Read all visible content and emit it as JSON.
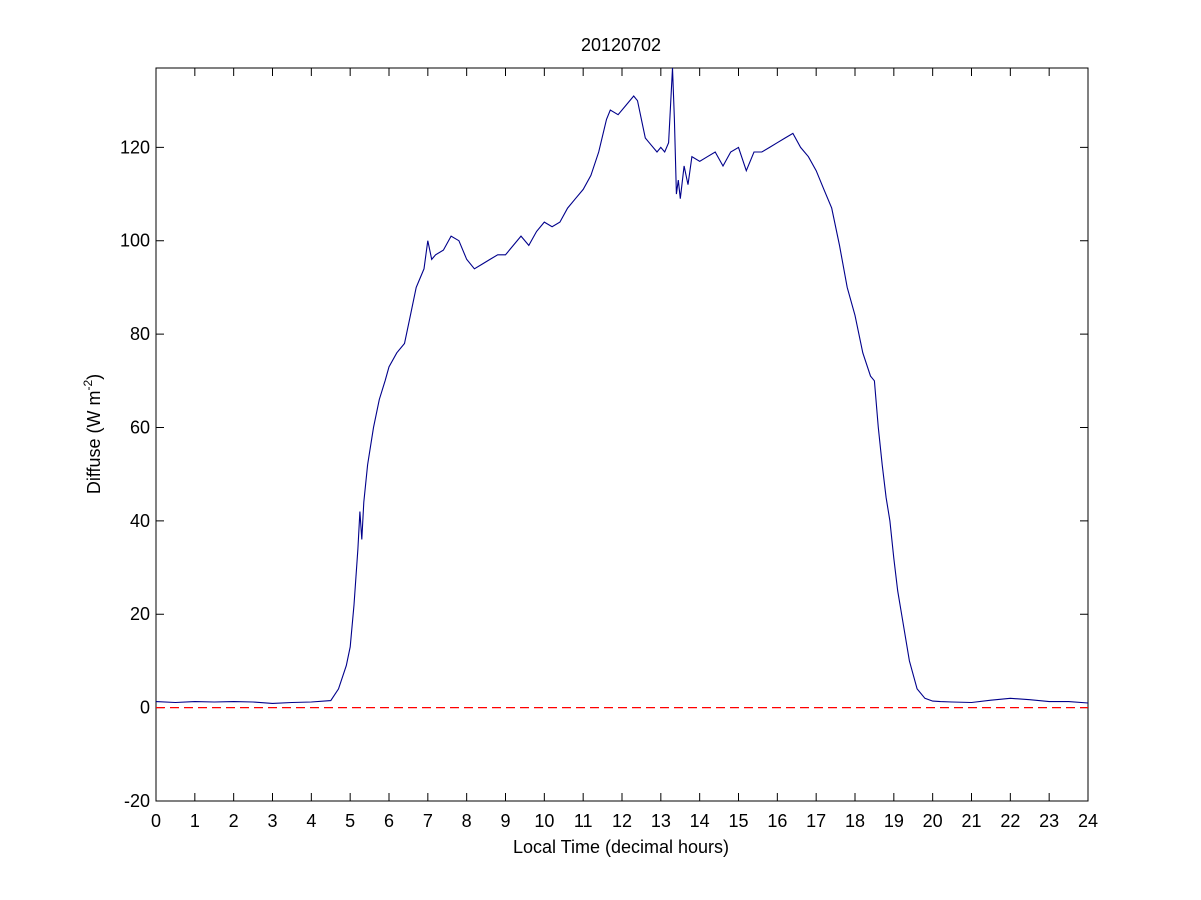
{
  "chart_data": {
    "type": "line",
    "title": "20120702",
    "xlabel": "Local Time (decimal hours)",
    "ylabel_main": "Diffuse (W m",
    "ylabel_sup": "-2",
    "ylabel_close": ")",
    "xlim": [
      0,
      24
    ],
    "ylim": [
      -20,
      137
    ],
    "xticks": [
      0,
      1,
      2,
      3,
      4,
      5,
      6,
      7,
      8,
      9,
      10,
      11,
      12,
      13,
      14,
      15,
      16,
      17,
      18,
      19,
      20,
      21,
      22,
      23,
      24
    ],
    "yticks": [
      -20,
      0,
      20,
      40,
      60,
      80,
      100,
      120
    ],
    "grid": false,
    "reference_line": {
      "y": 0,
      "color": "#ff0000",
      "style": "dashed"
    },
    "series": [
      {
        "color": "#00008b",
        "x": [
          0,
          0.5,
          1,
          1.5,
          2,
          2.5,
          3,
          3.5,
          4,
          4.5,
          4.7,
          4.9,
          5.0,
          5.1,
          5.2,
          5.25,
          5.3,
          5.35,
          5.45,
          5.6,
          5.75,
          5.9,
          6.0,
          6.2,
          6.4,
          6.55,
          6.7,
          6.8,
          6.9,
          7.0,
          7.1,
          7.2,
          7.4,
          7.6,
          7.8,
          8.0,
          8.2,
          8.4,
          8.6,
          8.8,
          9.0,
          9.2,
          9.4,
          9.6,
          9.8,
          10.0,
          10.2,
          10.4,
          10.6,
          10.8,
          11.0,
          11.2,
          11.4,
          11.6,
          11.7,
          11.9,
          12.1,
          12.3,
          12.4,
          12.5,
          12.6,
          12.7,
          12.9,
          13.0,
          13.1,
          13.2,
          13.3,
          13.35,
          13.4,
          13.45,
          13.5,
          13.6,
          13.7,
          13.8,
          14.0,
          14.2,
          14.4,
          14.6,
          14.8,
          15.0,
          15.2,
          15.4,
          15.6,
          15.8,
          16.0,
          16.2,
          16.4,
          16.6,
          16.8,
          17.0,
          17.2,
          17.4,
          17.6,
          17.8,
          18.0,
          18.2,
          18.4,
          18.5,
          18.6,
          18.7,
          18.8,
          18.9,
          19.0,
          19.1,
          19.2,
          19.4,
          19.6,
          19.8,
          20.0,
          20.2,
          20.5,
          21.0,
          21.5,
          22.0,
          22.5,
          23.0,
          23.5,
          24.0
        ],
        "y": [
          1.3,
          1.1,
          1.3,
          1.2,
          1.3,
          1.2,
          0.9,
          1.1,
          1.2,
          1.5,
          4,
          9,
          13,
          22,
          34,
          42,
          36,
          44,
          52,
          60,
          66,
          70,
          73,
          76,
          78,
          84,
          90,
          92,
          94,
          100,
          96,
          97,
          98,
          101,
          100,
          96,
          94,
          95,
          96,
          97,
          97,
          99,
          101,
          99,
          102,
          104,
          103,
          104,
          107,
          109,
          111,
          114,
          119,
          126,
          128,
          127,
          129,
          131,
          130,
          126,
          122,
          121,
          119,
          120,
          119,
          121,
          137,
          126,
          110,
          113,
          109,
          116,
          112,
          118,
          117,
          118,
          119,
          116,
          119,
          120,
          115,
          119,
          119,
          120,
          121,
          122,
          123,
          120,
          118,
          115,
          111,
          107,
          99,
          90,
          84,
          76,
          71,
          70,
          60,
          52,
          45,
          40,
          32,
          25,
          20,
          10,
          4,
          2,
          1.4,
          1.3,
          1.2,
          1.1,
          1.6,
          2.0,
          1.7,
          1.3,
          1.3,
          1.0
        ]
      }
    ]
  }
}
